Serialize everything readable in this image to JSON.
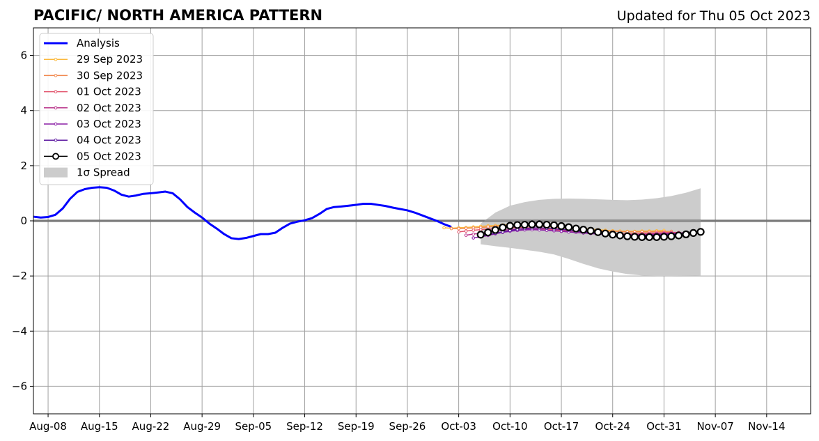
{
  "title": "PACIFIC/ NORTH AMERICA PATTERN",
  "subtitle": "Updated for Thu 05 Oct 2023",
  "colors": {
    "analysis": "#0000ff",
    "grid": "#a0a0a0",
    "spread": "#cccccc",
    "zero_line": "#555555"
  },
  "chart_data": {
    "type": "line",
    "title": "PACIFIC/ NORTH AMERICA PATTERN",
    "subtitle": "Updated for Thu 05 Oct 2023",
    "xlabel": "",
    "ylabel": "",
    "x_is_date": true,
    "xlim": [
      "2023-08-06",
      "2023-11-20"
    ],
    "ylim": [
      -7,
      7
    ],
    "x_ticks": [
      {
        "date": "2023-08-08",
        "label": "Aug-08"
      },
      {
        "date": "2023-08-15",
        "label": "Aug-15"
      },
      {
        "date": "2023-08-22",
        "label": "Aug-22"
      },
      {
        "date": "2023-08-29",
        "label": "Aug-29"
      },
      {
        "date": "2023-09-05",
        "label": "Sep-05"
      },
      {
        "date": "2023-09-12",
        "label": "Sep-12"
      },
      {
        "date": "2023-09-19",
        "label": "Sep-19"
      },
      {
        "date": "2023-09-26",
        "label": "Sep-26"
      },
      {
        "date": "2023-10-03",
        "label": "Oct-03"
      },
      {
        "date": "2023-10-10",
        "label": "Oct-10"
      },
      {
        "date": "2023-10-17",
        "label": "Oct-17"
      },
      {
        "date": "2023-10-24",
        "label": "Oct-24"
      },
      {
        "date": "2023-10-31",
        "label": "Oct-31"
      },
      {
        "date": "2023-11-07",
        "label": "Nov-07"
      },
      {
        "date": "2023-11-14",
        "label": "Nov-14"
      }
    ],
    "y_ticks": [
      {
        "value": 6,
        "label": "6"
      },
      {
        "value": 4,
        "label": "4"
      },
      {
        "value": 2,
        "label": "2"
      },
      {
        "value": 0,
        "label": "0"
      },
      {
        "value": -2,
        "label": "−2"
      },
      {
        "value": -4,
        "label": "−4"
      },
      {
        "value": -6,
        "label": "−6"
      }
    ],
    "grid": true,
    "legend_position": "top-left",
    "series": [
      {
        "name": "Analysis",
        "kind": "analysis",
        "color": "#0000ff",
        "x": [
          "2023-08-06",
          "2023-08-07",
          "2023-08-08",
          "2023-08-09",
          "2023-08-10",
          "2023-08-11",
          "2023-08-12",
          "2023-08-13",
          "2023-08-14",
          "2023-08-15",
          "2023-08-16",
          "2023-08-17",
          "2023-08-18",
          "2023-08-19",
          "2023-08-20",
          "2023-08-21",
          "2023-08-22",
          "2023-08-23",
          "2023-08-24",
          "2023-08-25",
          "2023-08-26",
          "2023-08-27",
          "2023-08-28",
          "2023-08-29",
          "2023-08-30",
          "2023-08-31",
          "2023-09-01",
          "2023-09-02",
          "2023-09-03",
          "2023-09-04",
          "2023-09-05",
          "2023-09-06",
          "2023-09-07",
          "2023-09-08",
          "2023-09-09",
          "2023-09-10",
          "2023-09-11",
          "2023-09-12",
          "2023-09-13",
          "2023-09-14",
          "2023-09-15",
          "2023-09-16",
          "2023-09-17",
          "2023-09-18",
          "2023-09-19",
          "2023-09-20",
          "2023-09-21",
          "2023-09-22",
          "2023-09-23",
          "2023-09-24",
          "2023-09-25",
          "2023-09-26",
          "2023-09-27",
          "2023-09-28",
          "2023-09-29",
          "2023-09-30",
          "2023-10-01",
          "2023-10-02"
        ],
        "y": [
          0.15,
          0.12,
          0.14,
          0.22,
          0.45,
          0.8,
          1.05,
          1.15,
          1.2,
          1.22,
          1.2,
          1.1,
          0.95,
          0.88,
          0.92,
          0.98,
          1.0,
          1.03,
          1.06,
          1.0,
          0.78,
          0.5,
          0.3,
          0.12,
          -0.1,
          -0.28,
          -0.48,
          -0.63,
          -0.66,
          -0.62,
          -0.55,
          -0.48,
          -0.48,
          -0.43,
          -0.25,
          -0.1,
          -0.03,
          0.02,
          0.1,
          0.25,
          0.43,
          0.5,
          0.52,
          0.55,
          0.58,
          0.62,
          0.62,
          0.58,
          0.54,
          0.48,
          0.43,
          0.38,
          0.3,
          0.2,
          0.1,
          0.0,
          -0.12,
          -0.22
        ]
      },
      {
        "name": "29 Sep 2023",
        "kind": "forecast",
        "color": "#fbb93d",
        "start": "2023-10-01",
        "y": [
          -0.25,
          -0.27,
          -0.25,
          -0.24,
          -0.22,
          -0.2,
          -0.18,
          -0.17,
          -0.15,
          -0.13,
          -0.12,
          -0.11,
          -0.13,
          -0.15,
          -0.17,
          -0.19,
          -0.21,
          -0.24,
          -0.26,
          -0.28,
          -0.3,
          -0.32,
          -0.34,
          -0.36,
          -0.37,
          -0.38,
          -0.38,
          -0.37,
          -0.37,
          -0.36,
          -0.35
        ]
      },
      {
        "name": "30 Sep 2023",
        "kind": "forecast",
        "color": "#f1894f",
        "start": "2023-10-02",
        "y": [
          -0.28,
          -0.28,
          -0.27,
          -0.26,
          -0.24,
          -0.22,
          -0.2,
          -0.18,
          -0.17,
          -0.16,
          -0.16,
          -0.17,
          -0.19,
          -0.21,
          -0.23,
          -0.25,
          -0.27,
          -0.29,
          -0.31,
          -0.33,
          -0.35,
          -0.37,
          -0.38,
          -0.39,
          -0.4,
          -0.4,
          -0.4,
          -0.4,
          -0.39,
          -0.39,
          -0.38
        ]
      },
      {
        "name": "01 Oct 2023",
        "kind": "forecast",
        "color": "#e2546c",
        "start": "2023-10-03",
        "y": [
          -0.4,
          -0.37,
          -0.34,
          -0.32,
          -0.3,
          -0.28,
          -0.26,
          -0.25,
          -0.24,
          -0.25,
          -0.26,
          -0.28,
          -0.3,
          -0.32,
          -0.34,
          -0.36,
          -0.38,
          -0.4,
          -0.42,
          -0.44,
          -0.45,
          -0.46,
          -0.47,
          -0.47,
          -0.47,
          -0.46,
          -0.45,
          -0.44,
          -0.43,
          -0.42,
          -0.42
        ]
      },
      {
        "name": "02 Oct 2023",
        "kind": "forecast",
        "color": "#b83289",
        "start": "2023-10-04",
        "y": [
          -0.52,
          -0.48,
          -0.45,
          -0.4,
          -0.37,
          -0.34,
          -0.32,
          -0.3,
          -0.3,
          -0.31,
          -0.32,
          -0.34,
          -0.36,
          -0.38,
          -0.4,
          -0.42,
          -0.44,
          -0.46,
          -0.47,
          -0.48,
          -0.49,
          -0.5,
          -0.5,
          -0.5,
          -0.49,
          -0.48,
          -0.47,
          -0.46,
          -0.45,
          -0.44,
          -0.43
        ]
      },
      {
        "name": "03 Oct 2023",
        "kind": "forecast",
        "color": "#8a1fa6",
        "start": "2023-10-05",
        "y": [
          -0.62,
          -0.58,
          -0.53,
          -0.47,
          -0.42,
          -0.38,
          -0.35,
          -0.33,
          -0.32,
          -0.33,
          -0.34,
          -0.36,
          -0.38,
          -0.4,
          -0.42,
          -0.44,
          -0.46,
          -0.48,
          -0.49,
          -0.5,
          -0.51,
          -0.52,
          -0.52,
          -0.51,
          -0.5,
          -0.49,
          -0.48,
          -0.46,
          -0.45,
          -0.44,
          -0.43
        ]
      },
      {
        "name": "04 Oct 2023",
        "kind": "forecast",
        "color": "#5c17a0",
        "start": "2023-10-06",
        "y": [
          -0.55,
          -0.5,
          -0.45,
          -0.4,
          -0.35,
          -0.31,
          -0.28,
          -0.26,
          -0.26,
          -0.27,
          -0.29,
          -0.31,
          -0.34,
          -0.37,
          -0.4,
          -0.43,
          -0.46,
          -0.48,
          -0.5,
          -0.52,
          -0.53,
          -0.54,
          -0.54,
          -0.53,
          -0.52,
          -0.5,
          -0.48,
          -0.46,
          -0.44,
          -0.42,
          -0.4
        ]
      },
      {
        "name": "05 Oct 2023",
        "kind": "current",
        "color": "#000000",
        "start": "2023-10-06",
        "y": [
          -0.5,
          -0.42,
          -0.33,
          -0.24,
          -0.18,
          -0.15,
          -0.14,
          -0.13,
          -0.13,
          -0.14,
          -0.16,
          -0.19,
          -0.23,
          -0.28,
          -0.32,
          -0.36,
          -0.41,
          -0.46,
          -0.5,
          -0.53,
          -0.56,
          -0.58,
          -0.59,
          -0.59,
          -0.59,
          -0.58,
          -0.56,
          -0.53,
          -0.49,
          -0.44,
          -0.4
        ]
      }
    ],
    "spread": {
      "name": "1σ Spread",
      "legend_label": "1σ Spread",
      "color": "#cccccc",
      "x": [
        "2023-10-06",
        "2023-10-08",
        "2023-10-10",
        "2023-10-12",
        "2023-10-14",
        "2023-10-16",
        "2023-10-18",
        "2023-10-20",
        "2023-10-22",
        "2023-10-24",
        "2023-10-26",
        "2023-10-28",
        "2023-10-30",
        "2023-11-01",
        "2023-11-03",
        "2023-11-05"
      ],
      "upper": [
        -0.1,
        0.3,
        0.55,
        0.68,
        0.76,
        0.8,
        0.81,
        0.8,
        0.78,
        0.76,
        0.75,
        0.77,
        0.82,
        0.9,
        1.02,
        1.18
      ],
      "lower": [
        -0.85,
        -0.92,
        -0.98,
        -1.05,
        -1.12,
        -1.22,
        -1.38,
        -1.56,
        -1.72,
        -1.84,
        -1.93,
        -1.98,
        -2.0,
        -2.0,
        -1.99,
        -1.98
      ]
    }
  }
}
